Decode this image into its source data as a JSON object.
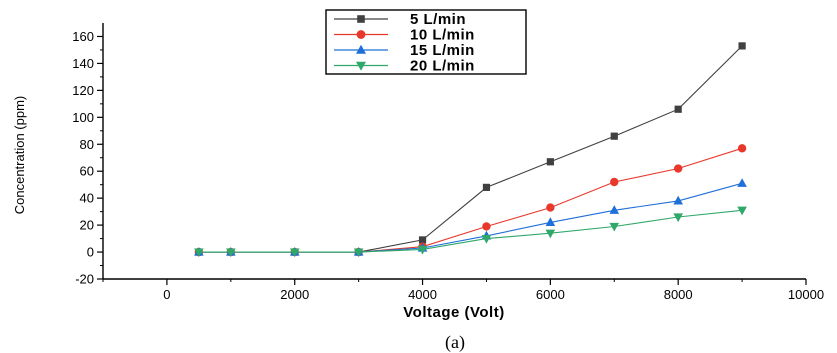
{
  "chart_data": {
    "type": "line",
    "title": "",
    "xlabel": "Voltage (Volt)",
    "ylabel": "Concentration (ppm)",
    "caption": "(a)",
    "xlim": [
      -1000,
      10000
    ],
    "ylim": [
      -20,
      170
    ],
    "xticks": [
      0,
      2000,
      4000,
      6000,
      8000,
      10000
    ],
    "yticks": [
      -20,
      0,
      20,
      40,
      60,
      80,
      100,
      120,
      140,
      160
    ],
    "x": [
      500,
      1000,
      2000,
      3000,
      4000,
      5000,
      6000,
      7000,
      8000,
      9000
    ],
    "legend_position": "top-center",
    "series": [
      {
        "name": "5 L/min",
        "marker": "square",
        "color": "#404040",
        "values": [
          0,
          0,
          0,
          0,
          9,
          48,
          67,
          86,
          106,
          153
        ]
      },
      {
        "name": "10 L/min",
        "marker": "circle",
        "color": "#e8382b",
        "values": [
          0,
          0,
          0,
          0,
          4,
          19,
          33,
          52,
          62,
          77
        ]
      },
      {
        "name": "15 L/min",
        "marker": "triangle-up",
        "color": "#1f6fd8",
        "values": [
          0,
          0,
          0,
          0,
          3,
          12,
          22,
          31,
          38,
          51
        ]
      },
      {
        "name": "20 L/min",
        "marker": "triangle-down",
        "color": "#2fa86a",
        "values": [
          0,
          0,
          0,
          0,
          2,
          10,
          14,
          19,
          26,
          31
        ]
      }
    ]
  }
}
